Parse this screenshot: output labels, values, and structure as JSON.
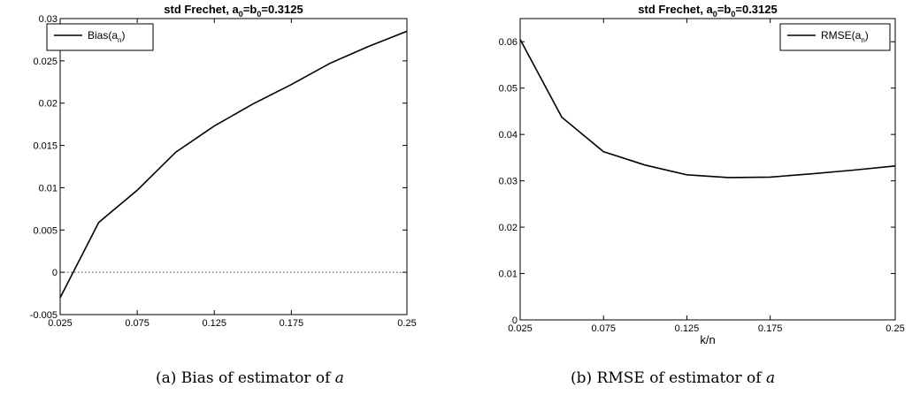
{
  "chart_data": [
    {
      "type": "line",
      "title": {
        "prefix": "std Frechet, a",
        "sub1": "0",
        "mid": "=b",
        "sub2": "0",
        "suffix": "=0.3125"
      },
      "xlabel": "",
      "ylabel": "",
      "xlim": [
        0.025,
        0.25
      ],
      "ylim": [
        -0.005,
        0.03
      ],
      "xticks": [
        "0.025",
        "0.075",
        "0.125",
        "0.175",
        "0.25"
      ],
      "yticks": [
        "-0.005",
        "0",
        "0.005",
        "0.01",
        "0.015",
        "0.02",
        "0.025",
        "0.03"
      ],
      "grid": false,
      "legend_position": "top-left",
      "reference_line": {
        "y": 0,
        "style": "dotted"
      },
      "series": [
        {
          "name": {
            "prefix": "Bias(a",
            "sub": "n",
            "suffix": ")"
          },
          "x": [
            0.025,
            0.05,
            0.075,
            0.1,
            0.125,
            0.15,
            0.175,
            0.2,
            0.225,
            0.25
          ],
          "y": [
            -0.003,
            0.0059,
            0.0097,
            0.0142,
            0.0173,
            0.0199,
            0.0222,
            0.0247,
            0.0267,
            0.0285
          ]
        }
      ],
      "caption": {
        "text": "(a) Bias of estimator of ",
        "var": "a"
      }
    },
    {
      "type": "line",
      "title": {
        "prefix": "std Frechet, a",
        "sub1": "0",
        "mid": "=b",
        "sub2": "0",
        "suffix": "=0.3125"
      },
      "xlabel": "k/n",
      "ylabel": "",
      "xlim": [
        0.025,
        0.25
      ],
      "ylim": [
        0,
        0.065
      ],
      "xticks": [
        "0.025",
        "0.075",
        "0.125",
        "0.175",
        "0.25"
      ],
      "yticks": [
        "0",
        "0.01",
        "0.02",
        "0.03",
        "0.04",
        "0.05",
        "0.06"
      ],
      "grid": false,
      "legend_position": "top-right",
      "series": [
        {
          "name": {
            "prefix": "RMSE(a",
            "sub": "n",
            "suffix": ")"
          },
          "x": [
            0.025,
            0.05,
            0.075,
            0.1,
            0.125,
            0.15,
            0.175,
            0.2,
            0.225,
            0.25
          ],
          "y": [
            0.0605,
            0.0437,
            0.0363,
            0.0334,
            0.0313,
            0.0307,
            0.0308,
            0.0315,
            0.0323,
            0.0332
          ]
        }
      ],
      "caption": {
        "text": "(b) RMSE of estimator of ",
        "var": "a"
      }
    }
  ]
}
